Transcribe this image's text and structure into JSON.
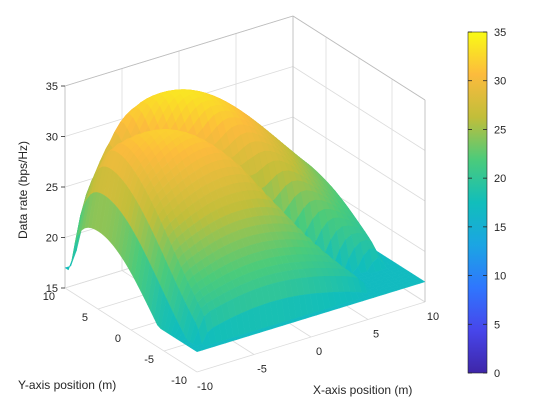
{
  "chart_data": {
    "type": "surface",
    "title": "",
    "xlabel": "X-axis position (m)",
    "ylabel": "Y-axis position (m)",
    "zlabel": "Data rate (bps/Hz)",
    "xlim": [
      -10,
      10
    ],
    "ylim": [
      -10,
      10
    ],
    "zlim": [
      15,
      35
    ],
    "x_ticks": [
      "-10",
      "-5",
      "0",
      "5",
      "10"
    ],
    "y_ticks": [
      "-10",
      "-5",
      "0",
      "5",
      "10"
    ],
    "z_ticks": [
      "15",
      "20",
      "25",
      "30",
      "35"
    ],
    "colorbar": {
      "range": [
        0,
        35
      ],
      "ticks": [
        "0",
        "5",
        "10",
        "15",
        "20",
        "25",
        "30",
        "35"
      ],
      "colormap": "parula"
    },
    "grid": true,
    "surface_summary": {
      "peak_value": 34,
      "peak_location": [
        -3,
        5
      ],
      "minimum_value": 16,
      "edge_floor_value": 17,
      "notch_line": "y = -x",
      "notch_min_near": [
        8,
        -8
      ]
    }
  }
}
